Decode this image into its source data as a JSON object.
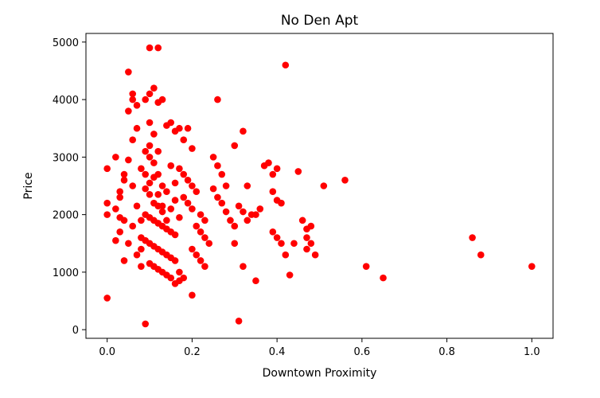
{
  "chart_data": {
    "type": "scatter",
    "title": "No Den Apt",
    "xlabel": "Downtown Proximity",
    "ylabel": "Price",
    "xlim": [
      -0.05,
      1.05
    ],
    "ylim": [
      -150,
      5150
    ],
    "xticks": [
      0.0,
      0.2,
      0.4,
      0.6,
      0.8,
      1.0
    ],
    "xtick_labels": [
      "0.0",
      "0.2",
      "0.4",
      "0.6",
      "0.8",
      "1.0"
    ],
    "yticks": [
      0,
      1000,
      2000,
      3000,
      4000,
      5000
    ],
    "ytick_labels": [
      "0",
      "1000",
      "2000",
      "3000",
      "4000",
      "5000"
    ],
    "grid": false,
    "legend": "none",
    "marker_color": "#ff0000",
    "series": [
      {
        "points": [
          [
            0.0,
            550
          ],
          [
            0.0,
            2000
          ],
          [
            0.0,
            2200
          ],
          [
            0.0,
            2800
          ],
          [
            0.02,
            2100
          ],
          [
            0.02,
            3000
          ],
          [
            0.03,
            1700
          ],
          [
            0.03,
            2300
          ],
          [
            0.04,
            1200
          ],
          [
            0.04,
            1900
          ],
          [
            0.04,
            2600
          ],
          [
            0.05,
            3800
          ],
          [
            0.06,
            4000
          ],
          [
            0.07,
            3900
          ],
          [
            0.08,
            2800
          ],
          [
            0.08,
            1400
          ],
          [
            0.05,
            4480
          ],
          [
            0.06,
            4100
          ],
          [
            0.06,
            3300
          ],
          [
            0.07,
            3500
          ],
          [
            0.09,
            3100
          ],
          [
            0.09,
            2700
          ],
          [
            0.1,
            3000
          ],
          [
            0.1,
            3600
          ],
          [
            0.11,
            3400
          ],
          [
            0.1,
            3200
          ],
          [
            0.12,
            3100
          ],
          [
            0.11,
            2900
          ],
          [
            0.12,
            2700
          ],
          [
            0.13,
            2500
          ],
          [
            0.14,
            2400
          ],
          [
            0.1,
            2350
          ],
          [
            0.11,
            2200
          ],
          [
            0.12,
            2150
          ],
          [
            0.13,
            2050
          ],
          [
            0.09,
            2000
          ],
          [
            0.1,
            1950
          ],
          [
            0.11,
            1900
          ],
          [
            0.12,
            1850
          ],
          [
            0.13,
            1800
          ],
          [
            0.14,
            1750
          ],
          [
            0.15,
            1700
          ],
          [
            0.16,
            1650
          ],
          [
            0.08,
            1600
          ],
          [
            0.09,
            1550
          ],
          [
            0.1,
            1500
          ],
          [
            0.11,
            1450
          ],
          [
            0.12,
            1400
          ],
          [
            0.13,
            1350
          ],
          [
            0.14,
            1300
          ],
          [
            0.15,
            1250
          ],
          [
            0.16,
            1200
          ],
          [
            0.1,
            1150
          ],
          [
            0.11,
            1100
          ],
          [
            0.12,
            1050
          ],
          [
            0.13,
            1000
          ],
          [
            0.14,
            950
          ],
          [
            0.15,
            900
          ],
          [
            0.17,
            850
          ],
          [
            0.16,
            800
          ],
          [
            0.09,
            100
          ],
          [
            0.1,
            4900
          ],
          [
            0.12,
            4900
          ],
          [
            0.11,
            4200
          ],
          [
            0.09,
            4000
          ],
          [
            0.1,
            4100
          ],
          [
            0.12,
            3950
          ],
          [
            0.13,
            4000
          ],
          [
            0.14,
            3550
          ],
          [
            0.15,
            3600
          ],
          [
            0.16,
            3450
          ],
          [
            0.17,
            3500
          ],
          [
            0.19,
            3500
          ],
          [
            0.18,
            3300
          ],
          [
            0.2,
            3150
          ],
          [
            0.17,
            2800
          ],
          [
            0.18,
            2700
          ],
          [
            0.19,
            2600
          ],
          [
            0.2,
            2500
          ],
          [
            0.21,
            2400
          ],
          [
            0.18,
            2300
          ],
          [
            0.19,
            2200
          ],
          [
            0.2,
            2100
          ],
          [
            0.22,
            2000
          ],
          [
            0.23,
            1900
          ],
          [
            0.21,
            1800
          ],
          [
            0.22,
            1700
          ],
          [
            0.23,
            1600
          ],
          [
            0.24,
            1500
          ],
          [
            0.2,
            1400
          ],
          [
            0.21,
            1300
          ],
          [
            0.22,
            1200
          ],
          [
            0.23,
            1100
          ],
          [
            0.17,
            1000
          ],
          [
            0.18,
            900
          ],
          [
            0.2,
            600
          ],
          [
            0.26,
            4000
          ],
          [
            0.25,
            3000
          ],
          [
            0.26,
            2850
          ],
          [
            0.27,
            2700
          ],
          [
            0.28,
            2500
          ],
          [
            0.25,
            2450
          ],
          [
            0.26,
            2300
          ],
          [
            0.27,
            2200
          ],
          [
            0.28,
            2050
          ],
          [
            0.29,
            1900
          ],
          [
            0.3,
            1800
          ],
          [
            0.31,
            2150
          ],
          [
            0.32,
            2050
          ],
          [
            0.33,
            1900
          ],
          [
            0.35,
            2000
          ],
          [
            0.36,
            2100
          ],
          [
            0.34,
            2000
          ],
          [
            0.37,
            2850
          ],
          [
            0.38,
            2900
          ],
          [
            0.39,
            2700
          ],
          [
            0.4,
            2800
          ],
          [
            0.39,
            2400
          ],
          [
            0.4,
            2250
          ],
          [
            0.41,
            2200
          ],
          [
            0.39,
            1700
          ],
          [
            0.4,
            1600
          ],
          [
            0.41,
            1500
          ],
          [
            0.42,
            1300
          ],
          [
            0.43,
            950
          ],
          [
            0.44,
            1500
          ],
          [
            0.32,
            3450
          ],
          [
            0.33,
            2500
          ],
          [
            0.3,
            3200
          ],
          [
            0.3,
            1500
          ],
          [
            0.32,
            1100
          ],
          [
            0.35,
            850
          ],
          [
            0.31,
            150
          ],
          [
            0.42,
            4600
          ],
          [
            0.45,
            2750
          ],
          [
            0.46,
            1900
          ],
          [
            0.47,
            1750
          ],
          [
            0.48,
            1800
          ],
          [
            0.47,
            1600
          ],
          [
            0.48,
            1500
          ],
          [
            0.49,
            1300
          ],
          [
            0.47,
            1400
          ],
          [
            0.51,
            2500
          ],
          [
            0.56,
            2600
          ],
          [
            0.61,
            1100
          ],
          [
            0.65,
            900
          ],
          [
            0.86,
            1600
          ],
          [
            0.88,
            1300
          ],
          [
            1.0,
            1100
          ],
          [
            0.05,
            2950
          ],
          [
            0.06,
            2500
          ],
          [
            0.07,
            2150
          ],
          [
            0.08,
            1900
          ],
          [
            0.03,
            2400
          ],
          [
            0.04,
            2700
          ],
          [
            0.05,
            1500
          ],
          [
            0.06,
            1800
          ],
          [
            0.07,
            1300
          ],
          [
            0.08,
            1100
          ],
          [
            0.02,
            1550
          ],
          [
            0.03,
            1950
          ],
          [
            0.15,
            2100
          ],
          [
            0.16,
            2250
          ],
          [
            0.17,
            1950
          ],
          [
            0.14,
            1900
          ],
          [
            0.13,
            2150
          ],
          [
            0.12,
            2350
          ],
          [
            0.1,
            2550
          ],
          [
            0.09,
            2450
          ],
          [
            0.11,
            2650
          ],
          [
            0.15,
            2850
          ],
          [
            0.16,
            2550
          ]
        ]
      }
    ]
  }
}
